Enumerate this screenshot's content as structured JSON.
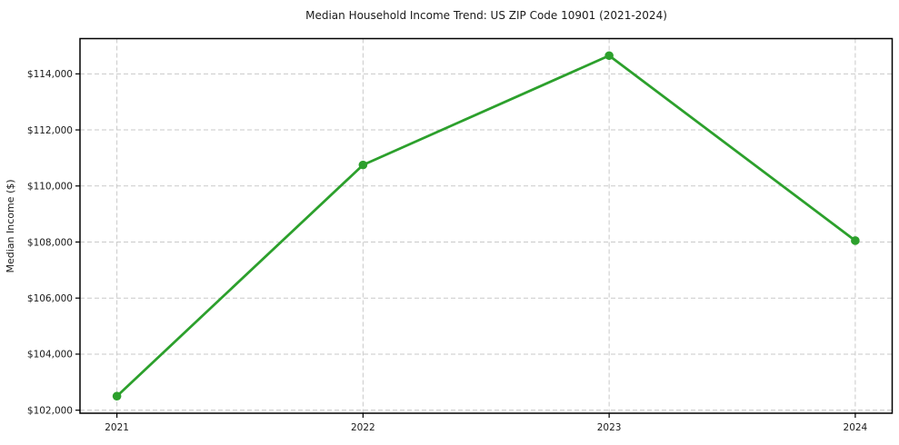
{
  "page": {
    "background": "#ffffff"
  },
  "chart_data": {
    "type": "line",
    "title": "Median Household Income Trend: US ZIP Code 10901 (2021-2024)",
    "xlabel": "",
    "ylabel": "Median Income ($)",
    "x": [
      2021,
      2022,
      2023,
      2024
    ],
    "x_tick_labels": [
      "2021",
      "2022",
      "2023",
      "2024"
    ],
    "values": [
      102500,
      110750,
      114650,
      108050
    ],
    "y_ticks": [
      102000,
      104000,
      106000,
      108000,
      110000,
      112000,
      114000
    ],
    "y_tick_labels": [
      "$102,000",
      "$104,000",
      "$106,000",
      "$108,000",
      "$110,000",
      "$112,000",
      "$114,000"
    ],
    "xlim": [
      2020.85,
      2024.15
    ],
    "ylim": [
      101892,
      115258
    ],
    "grid": true,
    "grid_style": "dashed",
    "legend": "none",
    "line_color": "#2ca02c",
    "marker": "circle",
    "grid_color": "#c9c9c9",
    "axis_color": "#000000",
    "text_color": "#1a1a1a"
  }
}
